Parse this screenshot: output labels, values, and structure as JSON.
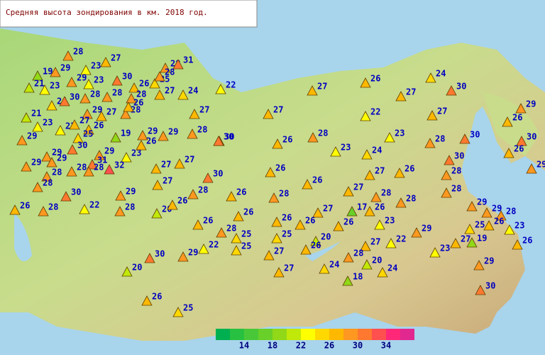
{
  "title": "Средняя высота зондирования в км. 2018 год.",
  "stations": {
    "values": [
      28,
      27,
      19,
      29,
      23,
      28,
      31,
      21,
      23,
      29,
      23,
      30,
      26,
      25,
      28,
      24,
      30,
      28,
      28,
      28,
      27,
      24,
      22,
      21,
      29,
      27,
      28,
      26,
      23,
      23,
      27,
      26,
      29,
      25,
      19,
      29,
      29,
      28,
      30,
      30,
      29,
      29,
      23,
      26,
      29,
      29,
      31,
      32,
      27,
      27,
      28,
      28,
      28,
      28,
      27,
      30,
      29,
      28,
      26,
      28,
      22,
      28,
      20,
      26,
      27,
      26,
      27,
      30,
      24,
      29,
      27,
      27,
      22,
      27,
      26,
      23,
      28,
      28,
      30,
      30,
      26,
      30,
      26,
      23,
      24,
      30,
      29,
      30,
      26,
      27,
      26,
      28,
      26,
      28,
      26,
      27,
      28,
      28,
      28,
      26,
      27,
      17,
      26,
      29,
      29,
      28,
      26,
      28,
      26,
      26,
      26,
      23,
      25,
      26,
      23,
      25,
      25,
      20,
      29,
      25,
      27,
      26,
      27,
      22,
      23,
      27,
      19,
      30,
      29,
      22,
      28,
      20,
      26,
      20,
      27,
      24,
      24,
      29,
      18,
      30,
      26,
      25
    ]
  },
  "legend": {
    "lim": [
      10,
      38
    ],
    "colors": [
      "#00b050",
      "#28c040",
      "#48c838",
      "#68d028",
      "#90d818",
      "#c0e808",
      "#ffff00",
      "#ffd800",
      "#ffb800",
      "#ff9820",
      "#ff7830",
      "#ff5050",
      "#ff2878",
      "#e02890"
    ],
    "ticks": [
      14,
      18,
      22,
      26,
      30,
      34
    ]
  }
}
